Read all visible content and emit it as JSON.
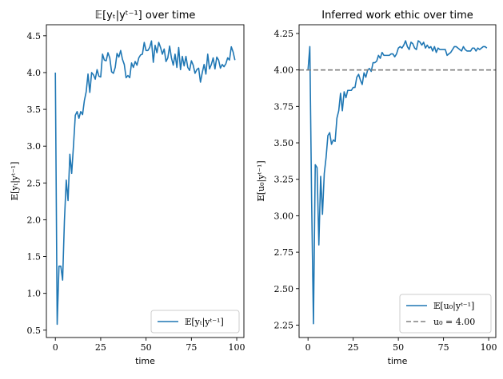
{
  "chart_data": [
    {
      "type": "line",
      "title": "𝔼[yₜ|yᵗ⁻¹] over time",
      "xlabel": "time",
      "ylabel": "𝔼[yₜ|yᵗ⁻¹]",
      "xlim": [
        -4.95,
        103.95
      ],
      "ylim": [
        0.4,
        4.65
      ],
      "xticks": [
        0,
        25,
        50,
        75,
        100
      ],
      "yticks": [
        0.5,
        1.0,
        1.5,
        2.0,
        2.5,
        3.0,
        3.5,
        4.0,
        4.5
      ],
      "ytick_labels": [
        "0.5",
        "1.0",
        "1.5",
        "2.0",
        "2.5",
        "3.0",
        "3.5",
        "4.0",
        "4.5"
      ],
      "grid": false,
      "legend_position": "lower-right",
      "series": [
        {
          "name": "𝔼[yₜ|yᵗ⁻¹]",
          "color": "#1f77b4",
          "style": "solid",
          "x": [
            0,
            1,
            2,
            3,
            4,
            5,
            6,
            7,
            8,
            9,
            10,
            11,
            12,
            13,
            14,
            15,
            16,
            17,
            18,
            19,
            20,
            21,
            22,
            23,
            24,
            25,
            26,
            27,
            28,
            29,
            30,
            31,
            32,
            33,
            34,
            35,
            36,
            37,
            38,
            39,
            40,
            41,
            42,
            43,
            44,
            45,
            46,
            47,
            48,
            49,
            50,
            51,
            52,
            53,
            54,
            55,
            56,
            57,
            58,
            59,
            60,
            61,
            62,
            63,
            64,
            65,
            66,
            67,
            68,
            69,
            70,
            71,
            72,
            73,
            74,
            75,
            76,
            77,
            78,
            79,
            80,
            81,
            82,
            83,
            84,
            85,
            86,
            87,
            88,
            89,
            90,
            91,
            92,
            93,
            94,
            95,
            96,
            97,
            98,
            99
          ],
          "y": [
            4.0,
            0.58,
            1.37,
            1.37,
            1.18,
            1.99,
            2.54,
            2.26,
            2.89,
            2.63,
            3.01,
            3.42,
            3.47,
            3.38,
            3.47,
            3.43,
            3.62,
            3.74,
            3.98,
            3.73,
            4.0,
            3.97,
            3.91,
            4.04,
            3.95,
            3.94,
            4.25,
            4.17,
            4.16,
            4.27,
            4.2,
            4.01,
            3.99,
            4.07,
            4.26,
            4.21,
            4.3,
            4.18,
            4.11,
            3.93,
            3.96,
            3.93,
            4.13,
            4.07,
            4.15,
            4.1,
            4.2,
            4.24,
            4.25,
            4.41,
            4.3,
            4.3,
            4.34,
            4.43,
            4.14,
            4.37,
            4.27,
            4.41,
            4.34,
            4.25,
            4.32,
            4.15,
            4.2,
            4.36,
            4.2,
            4.1,
            4.25,
            4.07,
            4.34,
            4.04,
            4.22,
            4.09,
            4.22,
            4.07,
            4.03,
            4.16,
            4.1,
            3.99,
            4.04,
            4.06,
            3.87,
            4.0,
            4.11,
            3.98,
            4.25,
            4.05,
            4.11,
            4.2,
            4.05,
            4.21,
            4.17,
            4.06,
            4.11,
            4.08,
            4.12,
            4.2,
            4.17,
            4.35,
            4.28,
            4.17
          ]
        }
      ]
    },
    {
      "type": "line",
      "title": "Inferred work ethic over time",
      "xlabel": "time",
      "ylabel": "𝔼[u₀|yᵗ⁻¹]",
      "xlim": [
        -4.95,
        103.95
      ],
      "ylim": [
        2.165,
        4.31
      ],
      "xticks": [
        0,
        25,
        50,
        75,
        100
      ],
      "yticks": [
        2.25,
        2.5,
        2.75,
        3.0,
        3.25,
        3.5,
        3.75,
        4.0,
        4.25
      ],
      "ytick_labels": [
        "2.25",
        "2.50",
        "2.75",
        "3.00",
        "3.25",
        "3.50",
        "3.75",
        "4.00",
        "4.25"
      ],
      "grid": false,
      "legend_position": "lower-right",
      "series": [
        {
          "name": "𝔼[u₀|yᵗ⁻¹]",
          "color": "#1f77b4",
          "style": "solid",
          "x": [
            0,
            1,
            2,
            3,
            4,
            5,
            6,
            7,
            8,
            9,
            10,
            11,
            12,
            13,
            14,
            15,
            16,
            17,
            18,
            19,
            20,
            21,
            22,
            23,
            24,
            25,
            26,
            27,
            28,
            29,
            30,
            31,
            32,
            33,
            34,
            35,
            36,
            37,
            38,
            39,
            40,
            41,
            42,
            43,
            44,
            45,
            46,
            47,
            48,
            49,
            50,
            51,
            52,
            53,
            54,
            55,
            56,
            57,
            58,
            59,
            60,
            61,
            62,
            63,
            64,
            65,
            66,
            67,
            68,
            69,
            70,
            71,
            72,
            73,
            74,
            75,
            76,
            77,
            78,
            79,
            80,
            81,
            82,
            83,
            84,
            85,
            86,
            87,
            88,
            89,
            90,
            91,
            92,
            93,
            94,
            95,
            96,
            97,
            98,
            99
          ],
          "y": [
            4.0,
            4.16,
            3.1,
            2.26,
            3.35,
            3.33,
            2.8,
            3.27,
            3.01,
            3.29,
            3.4,
            3.55,
            3.57,
            3.49,
            3.52,
            3.51,
            3.67,
            3.72,
            3.84,
            3.72,
            3.85,
            3.81,
            3.86,
            3.86,
            3.86,
            3.88,
            3.88,
            3.95,
            3.97,
            3.93,
            3.9,
            3.98,
            3.95,
            4.0,
            4.01,
            3.99,
            4.05,
            4.05,
            4.06,
            4.1,
            4.08,
            4.12,
            4.1,
            4.1,
            4.1,
            4.1,
            4.11,
            4.11,
            4.09,
            4.11,
            4.15,
            4.16,
            4.15,
            4.17,
            4.2,
            4.16,
            4.14,
            4.19,
            4.18,
            4.15,
            4.14,
            4.2,
            4.19,
            4.17,
            4.19,
            4.15,
            4.17,
            4.15,
            4.16,
            4.13,
            4.16,
            4.12,
            4.15,
            4.14,
            4.14,
            4.14,
            4.14,
            4.1,
            4.11,
            4.12,
            4.14,
            4.16,
            4.16,
            4.15,
            4.14,
            4.13,
            4.16,
            4.14,
            4.13,
            4.13,
            4.13,
            4.15,
            4.15,
            4.13,
            4.15,
            4.14,
            4.15,
            4.16,
            4.16,
            4.15
          ]
        },
        {
          "name": "u₀ = 4.00",
          "color": "#808080",
          "style": "dashed",
          "y_const": 4.0
        }
      ]
    }
  ]
}
